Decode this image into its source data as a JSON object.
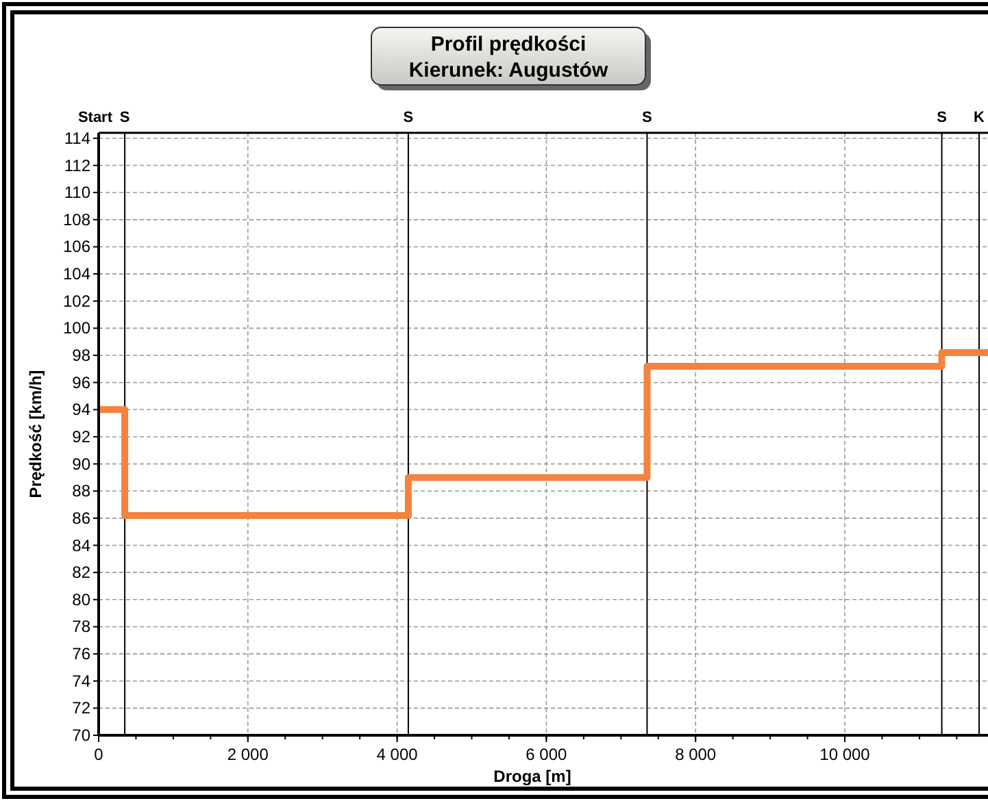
{
  "chart_data": {
    "type": "step",
    "title": "Profil prędkości",
    "subtitle": "Kierunek: Augustów",
    "xlabel": "Droga [m]",
    "ylabel": "Prędkość [km/h]",
    "x": [
      0,
      350,
      4150,
      7350,
      11300,
      12000
    ],
    "series": [
      {
        "color": "#f5823f",
        "values": [
          94,
          86.2,
          89,
          97.2,
          98.2,
          98.2
        ]
      }
    ],
    "xlim": [
      0,
      12000
    ],
    "xticks": [
      {
        "value": 0,
        "label": "0"
      },
      {
        "value": 2000,
        "label": "2 000"
      },
      {
        "value": 4000,
        "label": "4 000"
      },
      {
        "value": 6000,
        "label": "6 000"
      },
      {
        "value": 8000,
        "label": "8 000"
      },
      {
        "value": 10000,
        "label": "10 000"
      }
    ],
    "ylim": [
      70,
      114.4
    ],
    "yticks": [
      70,
      72,
      74,
      76,
      78,
      80,
      82,
      84,
      86,
      88,
      90,
      92,
      94,
      96,
      98,
      100,
      102,
      104,
      106,
      108,
      110,
      112,
      114
    ],
    "annotations": [
      "Start"
    ],
    "ref_lines": [
      {
        "axis": "x",
        "value": 350,
        "label": "S"
      },
      {
        "axis": "x",
        "value": 4150,
        "label": "S"
      },
      {
        "axis": "x",
        "value": 7350,
        "label": "S"
      },
      {
        "axis": "x",
        "value": 11300,
        "label": "S"
      },
      {
        "axis": "x",
        "value": 11800,
        "label": "K"
      }
    ],
    "grid": true,
    "line_style": "solid",
    "marker": "none"
  }
}
